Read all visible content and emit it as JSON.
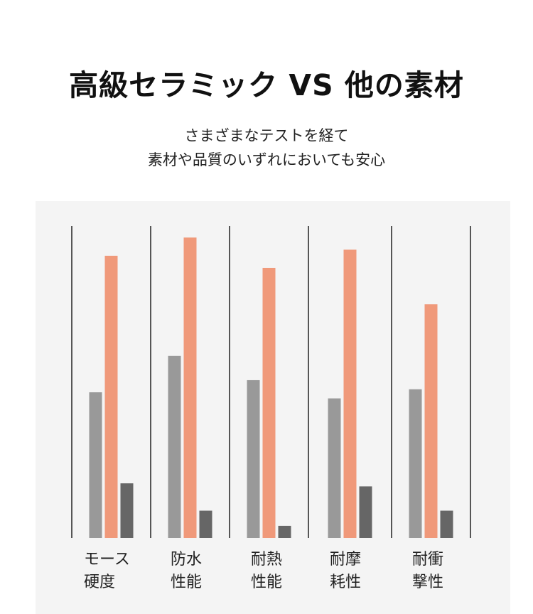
{
  "header": {
    "title": "高級セラミック VS 他の素材",
    "subtitle_line1": "さまざまなテストを経て",
    "subtitle_line2": "素材や品質のいずれにおいても安心"
  },
  "colors": {
    "ceramic": "#f0997a",
    "material_a": "#999999",
    "material_b": "#666666",
    "divider": "#222222"
  },
  "chart_data": {
    "type": "bar",
    "title": "",
    "xlabel": "",
    "ylabel": "",
    "ylim": [
      0,
      100
    ],
    "grid": false,
    "legend": "none",
    "categories": [
      {
        "line1": "モース",
        "line2": "硬度"
      },
      {
        "line1": "防水",
        "line2": "性能"
      },
      {
        "line1": "耐熱",
        "line2": "性能"
      },
      {
        "line1": "耐摩",
        "line2": "耗性"
      },
      {
        "line1": "耐衝",
        "line2": "撃性"
      }
    ],
    "series": [
      {
        "values": [
          48,
          60,
          52,
          46,
          49
        ],
        "color": "#999999"
      },
      {
        "values": [
          93,
          99,
          89,
          95,
          77
        ],
        "color": "#f0997a"
      },
      {
        "values": [
          18,
          9,
          4,
          17,
          9
        ],
        "color": "#666666"
      }
    ]
  }
}
